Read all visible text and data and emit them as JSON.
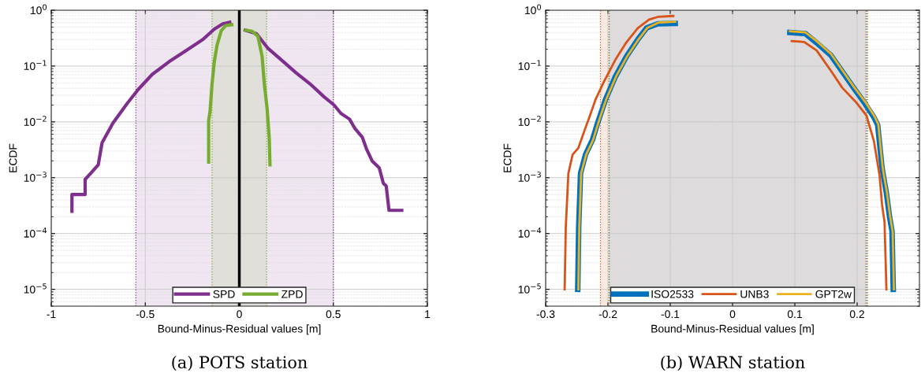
{
  "chart_data": [
    {
      "type": "line",
      "title": "(a) POTS station",
      "xlabel": "Bound-Minus-Residual values [m]",
      "ylabel": "ECDF",
      "log": "y",
      "grid": true,
      "legend": "bottom",
      "line_style": "solid",
      "marker": "none",
      "xlim": [
        -1,
        1
      ],
      "xticks": [
        -1,
        -0.5,
        0,
        0.5,
        1
      ],
      "ylim": [
        5e-06,
        1
      ],
      "yticks": [
        {
          "value": 1,
          "label": "10$^{0}$"
        },
        {
          "value": 0.1,
          "label": "10$^{−1}$"
        },
        {
          "value": 0.01,
          "label": "10$^{−2}$"
        },
        {
          "value": 0.001,
          "label": "10$^{−3}$"
        },
        {
          "value": 0.0001,
          "label": "10$^{−4}$"
        },
        {
          "value": 1e-05,
          "label": "10$^{−5}$"
        }
      ],
      "bands": [
        {
          "axis": "x",
          "from": -0.55,
          "to": 0.5,
          "color": "#7e2f8e"
        },
        {
          "axis": "x",
          "from": -0.145,
          "to": 0.145,
          "color": "#77ac30"
        }
      ],
      "ref_lines": [
        {
          "axis": "x",
          "value": -0.55,
          "color": "#7e2f8e",
          "line_style": "dotted"
        },
        {
          "axis": "x",
          "value": 0.5,
          "color": "#7e2f8e",
          "line_style": "dotted"
        },
        {
          "axis": "x",
          "value": -0.145,
          "color": "#77ac30",
          "line_style": "dotted"
        },
        {
          "axis": "x",
          "value": 0.145,
          "color": "#77ac30",
          "line_style": "dotted"
        },
        {
          "axis": "x",
          "value": 0,
          "color": "#000000",
          "line_style": "solid"
        }
      ],
      "series": [
        {
          "name": "SPD",
          "color": "#7e2f8e",
          "x": [
            -0.89,
            -0.89,
            -0.82,
            -0.82,
            -0.79,
            -0.75,
            -0.73,
            -0.673,
            -0.598,
            -0.538,
            -0.463,
            -0.373,
            -0.283,
            -0.193,
            -0.133,
            -0.088,
            -0.051,
            null,
            0.031,
            0.091,
            0.151,
            0.226,
            0.301,
            0.376,
            0.451,
            0.504,
            0.541,
            0.586,
            0.616,
            0.654,
            0.676,
            0.706,
            0.744,
            0.766,
            0.781,
            0.796,
            0.864
          ],
          "values": [
            0.00025,
            0.0005,
            0.0005,
            0.00093,
            0.0012,
            0.0017,
            0.0042,
            0.0094,
            0.021,
            0.038,
            0.071,
            0.12,
            0.19,
            0.3,
            0.46,
            0.57,
            0.61,
            null,
            0.44,
            0.38,
            0.21,
            0.127,
            0.076,
            0.048,
            0.028,
            0.02,
            0.0141,
            0.0112,
            0.0075,
            0.0053,
            0.0033,
            0.002,
            0.0015,
            0.00079,
            0.00071,
            0.00026,
            0.00026
          ]
        },
        {
          "name": "ZPD",
          "color": "#77ac30",
          "x": [
            -0.163,
            -0.163,
            -0.156,
            -0.145,
            -0.133,
            -0.118,
            -0.096,
            -0.073,
            -0.04,
            null,
            0.034,
            0.069,
            0.099,
            0.121,
            0.133,
            0.148,
            0.159,
            0.163
          ],
          "values": [
            0.0019,
            0.0106,
            0.015,
            0.048,
            0.12,
            0.24,
            0.43,
            0.53,
            0.55,
            null,
            0.44,
            0.42,
            0.34,
            0.15,
            0.048,
            0.017,
            0.0052,
            0.0017
          ]
        }
      ]
    },
    {
      "type": "line",
      "title": "(b) WARN station",
      "xlabel": "Bound-Minus-Residual values [m]",
      "ylabel": "ECDF",
      "log": "y",
      "grid": true,
      "legend": "bottom",
      "line_style": "solid",
      "marker": "none",
      "xlim": [
        -0.3,
        0.3
      ],
      "xticks": [
        -0.3,
        -0.2,
        -0.1,
        0,
        0.1,
        0.2
      ],
      "ylim": [
        5e-06,
        1
      ],
      "yticks": [
        {
          "value": 1,
          "label": "10$^{0}$"
        },
        {
          "value": 0.1,
          "label": "10$^{−1}$"
        },
        {
          "value": 0.01,
          "label": "10$^{−2}$"
        },
        {
          "value": 0.001,
          "label": "10$^{−3}$"
        },
        {
          "value": 0.0001,
          "label": "10$^{−4}$"
        },
        {
          "value": 1e-05,
          "label": "10$^{−5}$"
        }
      ],
      "bands": [
        {
          "axis": "x",
          "from": -0.198,
          "to": 0.216,
          "color": "#0072bd"
        },
        {
          "axis": "x",
          "from": -0.212,
          "to": 0.214,
          "color": "#d95319"
        }
      ],
      "ref_lines": [
        {
          "axis": "x",
          "value": -0.198,
          "color": "#0072bd",
          "line_style": "dotted"
        },
        {
          "axis": "x",
          "value": 0.216,
          "color": "#0072bd",
          "line_style": "dotted"
        },
        {
          "axis": "x",
          "value": -0.212,
          "color": "#d95319",
          "line_style": "dotted"
        },
        {
          "axis": "x",
          "value": 0.214,
          "color": "#d95319",
          "line_style": "dotted"
        },
        {
          "axis": "x",
          "value": -0.199,
          "color": "#edb120",
          "line_style": "dotted"
        },
        {
          "axis": "x",
          "value": 0.217,
          "color": "#edb120",
          "line_style": "dotted"
        }
      ],
      "series": [
        {
          "name": "ISO2533",
          "color": "#0072bd",
          "x": [
            -0.2485,
            -0.247,
            -0.244,
            -0.236,
            -0.225,
            -0.216,
            -0.204,
            -0.188,
            -0.17,
            -0.152,
            -0.138,
            -0.12,
            -0.092,
            null,
            0.092,
            0.117,
            0.135,
            0.158,
            0.176,
            0.195,
            0.213,
            0.227,
            0.233,
            0.24,
            0.247,
            0.252,
            0.256,
            0.258
          ],
          "values": [
            1e-05,
            0.00013,
            0.0012,
            0.0026,
            0.0047,
            0.01,
            0.025,
            0.065,
            0.15,
            0.3,
            0.48,
            0.57,
            0.58,
            null,
            0.4,
            0.38,
            0.26,
            0.155,
            0.08,
            0.04,
            0.021,
            0.012,
            0.0088,
            0.0015,
            0.00053,
            0.0002,
            0.00011,
            1e-05
          ]
        },
        {
          "name": "UNB3",
          "color": "#d95319",
          "x": [
            -0.2695,
            -0.2677,
            -0.2635,
            -0.2567,
            -0.2476,
            -0.236,
            -0.2294,
            -0.22,
            -0.207,
            -0.188,
            -0.17,
            -0.152,
            -0.134,
            -0.12,
            -0.095,
            null,
            0.095,
            0.115,
            0.135,
            0.158,
            0.176,
            0.199,
            0.215,
            0.227,
            0.236,
            0.24,
            0.244,
            0.247
          ],
          "values": [
            1e-05,
            0.00013,
            0.0012,
            0.0026,
            0.0034,
            0.0079,
            0.0125,
            0.025,
            0.051,
            0.13,
            0.27,
            0.48,
            0.68,
            0.76,
            0.79,
            null,
            0.28,
            0.27,
            0.19,
            0.082,
            0.041,
            0.022,
            0.013,
            0.0045,
            0.0011,
            0.00033,
            0.00016,
            1e-05
          ]
        },
        {
          "name": "GPT2w",
          "color": "#edb120",
          "x": [
            -0.2475,
            -0.246,
            -0.243,
            -0.235,
            -0.224,
            -0.215,
            -0.203,
            -0.187,
            -0.169,
            -0.151,
            -0.137,
            -0.119,
            -0.092,
            null,
            0.092,
            0.117,
            0.135,
            0.158,
            0.176,
            0.195,
            0.214,
            0.228,
            0.234,
            0.241,
            0.248,
            0.253,
            0.257,
            0.259
          ],
          "values": [
            1e-05,
            0.00013,
            0.0012,
            0.0026,
            0.0047,
            0.01,
            0.025,
            0.065,
            0.15,
            0.3,
            0.48,
            0.6,
            0.62,
            null,
            0.42,
            0.4,
            0.28,
            0.165,
            0.085,
            0.042,
            0.022,
            0.0125,
            0.009,
            0.0015,
            0.00053,
            0.0002,
            0.00011,
            1e-05
          ]
        }
      ]
    }
  ]
}
